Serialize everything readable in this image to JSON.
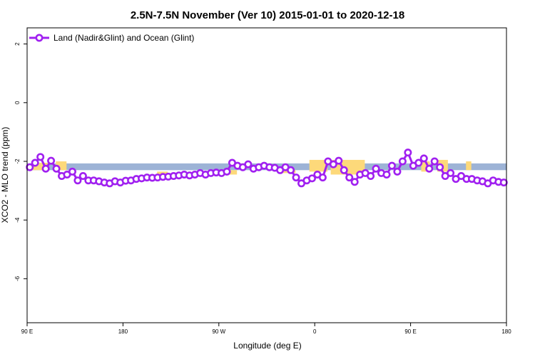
{
  "chart_data": {
    "type": "line",
    "title": "2.5N-7.5N November (Ver 10)   2015-01-01 to 2020-12-18",
    "xlabel": "Longitude (deg E)",
    "ylabel": "XCO2 - MLO trend (ppm)",
    "x_ticks": [
      {
        "value": 90,
        "label": "90 E"
      },
      {
        "value": 180,
        "label": "180"
      },
      {
        "value": 270,
        "label": "90 W"
      },
      {
        "value": 360,
        "label": "0"
      },
      {
        "value": 450,
        "label": "90 E"
      },
      {
        "value": 540,
        "label": "180"
      }
    ],
    "y_ticks": [
      {
        "value": 2,
        "label": "2"
      },
      {
        "value": 0,
        "label": "0"
      },
      {
        "value": -2,
        "label": "-2"
      },
      {
        "value": -4,
        "label": "-4"
      },
      {
        "value": -6,
        "label": "-6"
      }
    ],
    "xlim": [
      90,
      540
    ],
    "ylim": [
      -7.5,
      2.55
    ],
    "grid": false,
    "legend_position": "top-left",
    "colors": {
      "series": "#a020f0",
      "land_band": "#9db3d6",
      "ocean_band": "#fdd97a"
    },
    "background_bands": {
      "blue_band_range": [
        -2.3,
        -2.07
      ],
      "yellow_segments": [
        {
          "x": [
            95,
            110
          ],
          "y": [
            -2.05,
            -2.3
          ]
        },
        {
          "x": [
            117,
            127
          ],
          "y": [
            -2.0,
            -2.3
          ]
        },
        {
          "x": [
            212,
            222
          ],
          "y": [
            -2.35,
            -2.45
          ]
        },
        {
          "x": [
            277,
            287
          ],
          "y": [
            -2.3,
            -2.45
          ]
        },
        {
          "x": [
            330,
            342
          ],
          "y": [
            -2.3,
            -2.4
          ]
        },
        {
          "x": [
            355,
            372
          ],
          "y": [
            -1.95,
            -2.35
          ]
        },
        {
          "x": [
            375,
            407
          ],
          "y": [
            -1.95,
            -2.45
          ]
        },
        {
          "x": [
            460,
            468
          ],
          "y": [
            -2.0,
            -2.35
          ]
        },
        {
          "x": [
            475,
            485
          ],
          "y": [
            -1.95,
            -2.35
          ]
        },
        {
          "x": [
            502,
            507
          ],
          "y": [
            -2.0,
            -2.3
          ]
        }
      ]
    },
    "series": [
      {
        "name": "Land (Nadir&Glint) and Ocean (Glint)",
        "x": [
          92.5,
          97.5,
          102.5,
          107.5,
          112.5,
          117.5,
          122.5,
          127.5,
          132.5,
          137.5,
          142.5,
          147.5,
          152.5,
          157.5,
          162.5,
          167.5,
          172.5,
          177.5,
          182.5,
          187.5,
          192.5,
          197.5,
          202.5,
          207.5,
          212.5,
          217.5,
          222.5,
          227.5,
          232.5,
          237.5,
          242.5,
          247.5,
          252.5,
          257.5,
          262.5,
          267.5,
          272.5,
          277.5,
          282.5,
          287.5,
          292.5,
          297.5,
          302.5,
          307.5,
          312.5,
          317.5,
          322.5,
          327.5,
          332.5,
          337.5,
          342.5,
          347.5,
          352.5,
          357.5,
          362.5,
          367.5,
          372.5,
          377.5,
          382.5,
          387.5,
          392.5,
          397.5,
          402.5,
          407.5,
          412.5,
          417.5,
          422.5,
          427.5,
          432.5,
          437.5,
          442.5,
          447.5,
          452.5,
          457.5,
          462.5,
          467.5,
          472.5,
          477.5,
          482.5,
          487.5,
          492.5,
          497.5,
          502.5,
          507.5,
          512.5,
          517.5,
          522.5,
          527.5,
          532.5,
          537.5
        ],
        "y": [
          -2.2,
          -2.05,
          -1.85,
          -2.25,
          -1.98,
          -2.25,
          -2.5,
          -2.45,
          -2.35,
          -2.65,
          -2.5,
          -2.65,
          -2.65,
          -2.68,
          -2.72,
          -2.75,
          -2.68,
          -2.72,
          -2.66,
          -2.65,
          -2.6,
          -2.58,
          -2.55,
          -2.56,
          -2.55,
          -2.53,
          -2.52,
          -2.5,
          -2.48,
          -2.45,
          -2.48,
          -2.45,
          -2.4,
          -2.45,
          -2.4,
          -2.38,
          -2.4,
          -2.35,
          -2.05,
          -2.15,
          -2.2,
          -2.1,
          -2.25,
          -2.2,
          -2.15,
          -2.2,
          -2.22,
          -2.3,
          -2.2,
          -2.3,
          -2.55,
          -2.75,
          -2.65,
          -2.58,
          -2.45,
          -2.55,
          -2.0,
          -2.1,
          -1.98,
          -2.3,
          -2.55,
          -2.7,
          -2.45,
          -2.4,
          -2.5,
          -2.25,
          -2.4,
          -2.45,
          -2.15,
          -2.35,
          -2.0,
          -1.7,
          -2.15,
          -2.05,
          -1.9,
          -2.25,
          -2.0,
          -2.2,
          -2.5,
          -2.4,
          -2.6,
          -2.5,
          -2.6,
          -2.6,
          -2.65,
          -2.68,
          -2.75,
          -2.65,
          -2.7,
          -2.72
        ]
      }
    ]
  }
}
